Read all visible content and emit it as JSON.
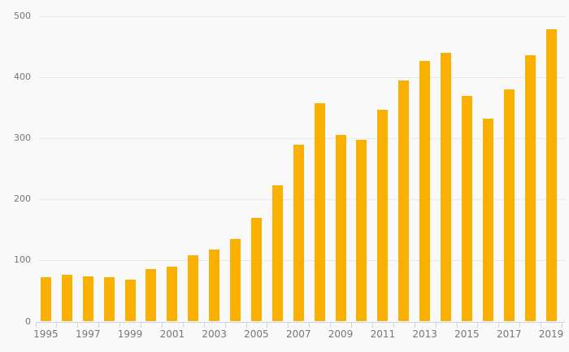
{
  "chart_data": {
    "type": "bar",
    "categories": [
      1995,
      1996,
      1997,
      1998,
      1999,
      2000,
      2001,
      2002,
      2003,
      2004,
      2005,
      2006,
      2007,
      2008,
      2009,
      2010,
      2011,
      2012,
      2013,
      2014,
      2015,
      2016,
      2017,
      2018,
      2019
    ],
    "values": [
      73,
      77,
      74,
      72,
      68,
      86,
      90,
      109,
      118,
      135,
      170,
      223,
      289,
      358,
      306,
      297,
      347,
      395,
      427,
      440,
      369,
      332,
      380,
      436,
      479
    ],
    "x_tick_labels": [
      "1995",
      "1997",
      "1999",
      "2001",
      "2003",
      "2005",
      "2007",
      "2009",
      "2011",
      "2013",
      "2015",
      "2017",
      "2019"
    ],
    "ytick_labels": [
      "0",
      "100",
      "200",
      "300",
      "400",
      "500"
    ],
    "ylim": [
      0,
      500
    ],
    "ytick_step": 100,
    "grid": true,
    "legend": false,
    "bar_color": "#f9b000",
    "background_color": "#f9f9f9",
    "gridline_color": "#e9e9e9",
    "axis_line_color": "#ccd3e6",
    "label_color": "#767676"
  }
}
